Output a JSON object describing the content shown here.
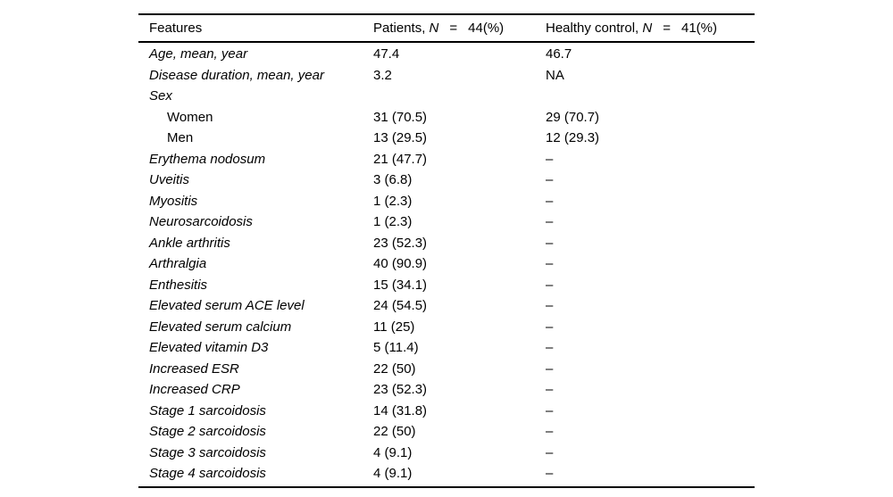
{
  "table": {
    "title_semantic": "patient-characteristics-table",
    "colors": {
      "text": "#000000",
      "background": "#ffffff",
      "rule": "#000000"
    },
    "header": {
      "features": "Features",
      "patients": {
        "label": "Patients,",
        "n": "N",
        "eq": "=",
        "value": "44(%)"
      },
      "healthy": {
        "label": "Healthy control,",
        "n": "N",
        "eq": "=",
        "value": "41(%)"
      }
    },
    "rows": [
      {
        "label": "Age, mean, year",
        "italic": true,
        "indent": false,
        "patients": "47.4",
        "healthy": "46.7"
      },
      {
        "label": "Disease duration, mean, year",
        "italic": true,
        "indent": false,
        "patients": "3.2",
        "healthy": "NA"
      },
      {
        "label": "Sex",
        "italic": true,
        "indent": false,
        "patients": "",
        "healthy": ""
      },
      {
        "label": "Women",
        "italic": false,
        "indent": true,
        "patients": "31 (70.5)",
        "healthy": "29 (70.7)"
      },
      {
        "label": "Men",
        "italic": false,
        "indent": true,
        "patients": "13 (29.5)",
        "healthy": "12 (29.3)"
      },
      {
        "label": "Erythema nodosum",
        "italic": true,
        "indent": false,
        "patients": "21 (47.7)",
        "healthy": "–"
      },
      {
        "label": "Uveitis",
        "italic": true,
        "indent": false,
        "patients": "3 (6.8)",
        "healthy": "–"
      },
      {
        "label": "Myositis",
        "italic": true,
        "indent": false,
        "patients": "1 (2.3)",
        "healthy": "–"
      },
      {
        "label": "Neurosarcoidosis",
        "italic": true,
        "indent": false,
        "patients": "1 (2.3)",
        "healthy": "–"
      },
      {
        "label": "Ankle arthritis",
        "italic": true,
        "indent": false,
        "patients": "23 (52.3)",
        "healthy": "–"
      },
      {
        "label": "Arthralgia",
        "italic": true,
        "indent": false,
        "patients": "40 (90.9)",
        "healthy": "–"
      },
      {
        "label": "Enthesitis",
        "italic": true,
        "indent": false,
        "patients": "15 (34.1)",
        "healthy": "–"
      },
      {
        "label": "Elevated serum ACE level",
        "italic": true,
        "indent": false,
        "patients": "24 (54.5)",
        "healthy": "–"
      },
      {
        "label": "Elevated serum calcium",
        "italic": true,
        "indent": false,
        "patients": "11 (25)",
        "healthy": "–"
      },
      {
        "label": "Elevated vitamin D3",
        "italic": true,
        "indent": false,
        "patients": "5 (11.4)",
        "healthy": "–"
      },
      {
        "label": "Increased ESR",
        "italic": true,
        "indent": false,
        "patients": "22 (50)",
        "healthy": "–"
      },
      {
        "label": "Increased CRP",
        "italic": true,
        "indent": false,
        "patients": "23 (52.3)",
        "healthy": "–"
      },
      {
        "label": "Stage 1 sarcoidosis",
        "italic": true,
        "indent": false,
        "patients": "14 (31.8)",
        "healthy": "–"
      },
      {
        "label": "Stage 2 sarcoidosis",
        "italic": true,
        "indent": false,
        "patients": "22 (50)",
        "healthy": "–"
      },
      {
        "label": "Stage 3 sarcoidosis",
        "italic": true,
        "indent": false,
        "patients": "4 (9.1)",
        "healthy": "–"
      },
      {
        "label": "Stage 4 sarcoidosis",
        "italic": true,
        "indent": false,
        "patients": "4 (9.1)",
        "healthy": "–"
      }
    ]
  }
}
